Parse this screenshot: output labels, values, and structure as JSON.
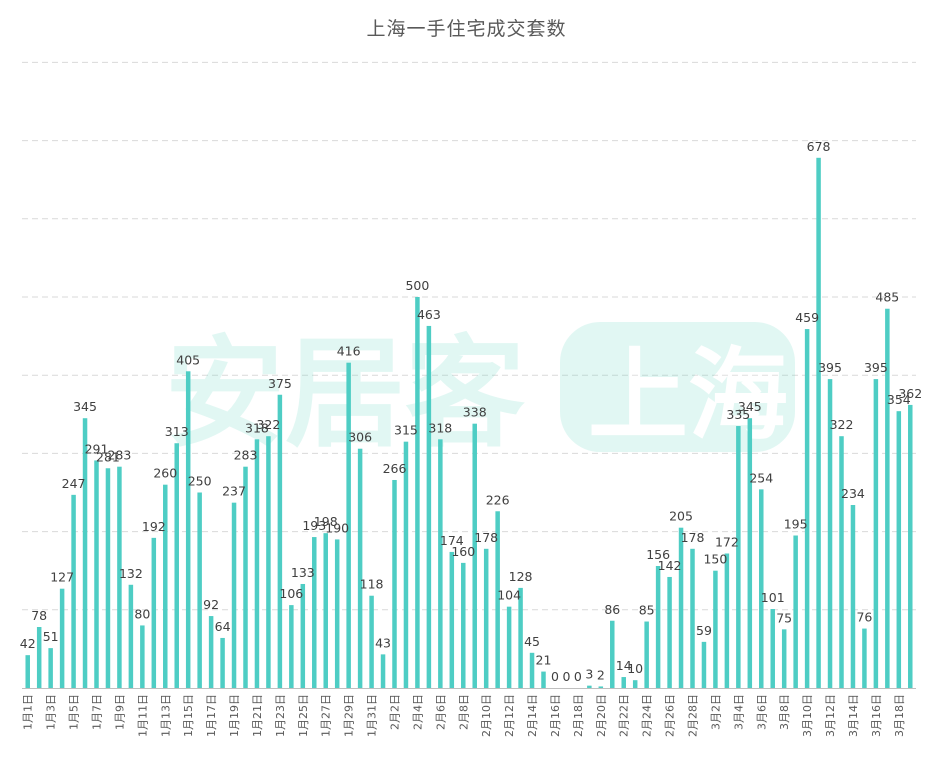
{
  "chart_data": {
    "type": "bar",
    "title": "上海一手住宅成交套数",
    "xlabel": "",
    "ylabel": "",
    "ylim": [
      0,
      800
    ],
    "grid": true,
    "bar_color": "#4ecdc4",
    "watermark": {
      "left_text": "安居客",
      "right_text": "上海"
    },
    "categories": [
      "1月1日",
      "1月2日",
      "1月3日",
      "1月4日",
      "1月5日",
      "1月6日",
      "1月7日",
      "1月8日",
      "1月9日",
      "1月10日",
      "1月11日",
      "1月12日",
      "1月13日",
      "1月14日",
      "1月15日",
      "1月16日",
      "1月17日",
      "1月18日",
      "1月19日",
      "1月20日",
      "1月21日",
      "1月22日",
      "1月23日",
      "1月24日",
      "1月25日",
      "1月26日",
      "1月27日",
      "1月28日",
      "1月29日",
      "1月30日",
      "1月31日",
      "2月1日",
      "2月2日",
      "2月3日",
      "2月4日",
      "2月5日",
      "2月6日",
      "2月7日",
      "2月8日",
      "2月9日",
      "2月10日",
      "2月11日",
      "2月12日",
      "2月13日",
      "2月14日",
      "2月15日",
      "2月16日",
      "2月17日",
      "2月18日",
      "2月19日",
      "2月20日",
      "2月21日",
      "2月22日",
      "2月23日",
      "2月24日",
      "2月25日",
      "2月26日",
      "2月27日",
      "2月28日",
      "3月1日",
      "3月2日",
      "3月3日",
      "3月4日",
      "3月5日",
      "3月6日",
      "3月7日",
      "3月8日",
      "3月9日",
      "3月10日",
      "3月11日",
      "3月12日",
      "3月13日",
      "3月14日",
      "3月15日",
      "3月16日",
      "3月17日",
      "3月18日",
      "3月19日"
    ],
    "values": [
      42,
      78,
      51,
      127,
      247,
      345,
      291,
      281,
      283,
      132,
      80,
      192,
      260,
      313,
      405,
      250,
      92,
      64,
      237,
      283,
      318,
      322,
      375,
      106,
      133,
      193,
      198,
      190,
      416,
      306,
      118,
      43,
      266,
      315,
      500,
      463,
      318,
      174,
      160,
      338,
      178,
      226,
      104,
      128,
      45,
      21,
      0,
      0,
      0,
      3,
      2,
      86,
      14,
      10,
      85,
      156,
      142,
      205,
      178,
      59,
      150,
      172,
      335,
      345,
      254,
      101,
      75,
      195,
      459,
      678,
      395,
      322,
      234,
      76,
      395,
      485,
      354,
      362
    ],
    "tick_labels": [
      "1月1日",
      "1月3日",
      "1月5日",
      "1月7日",
      "1月9日",
      "1月11日",
      "1月13日",
      "1月15日",
      "1月17日",
      "1月19日",
      "1月21日",
      "1月23日",
      "1月25日",
      "1月27日",
      "1月29日",
      "1月31日",
      "2月2日",
      "2月4日",
      "2月6日",
      "2月8日",
      "2月10日",
      "2月12日",
      "2月14日",
      "2月16日",
      "2月18日",
      "2月20日",
      "2月22日",
      "2月24日",
      "2月26日",
      "2月28日",
      "3月2日",
      "3月4日",
      "3月6日",
      "3月8日",
      "3月10日",
      "3月12日",
      "3月14日",
      "3月16日",
      "3月18日"
    ]
  }
}
